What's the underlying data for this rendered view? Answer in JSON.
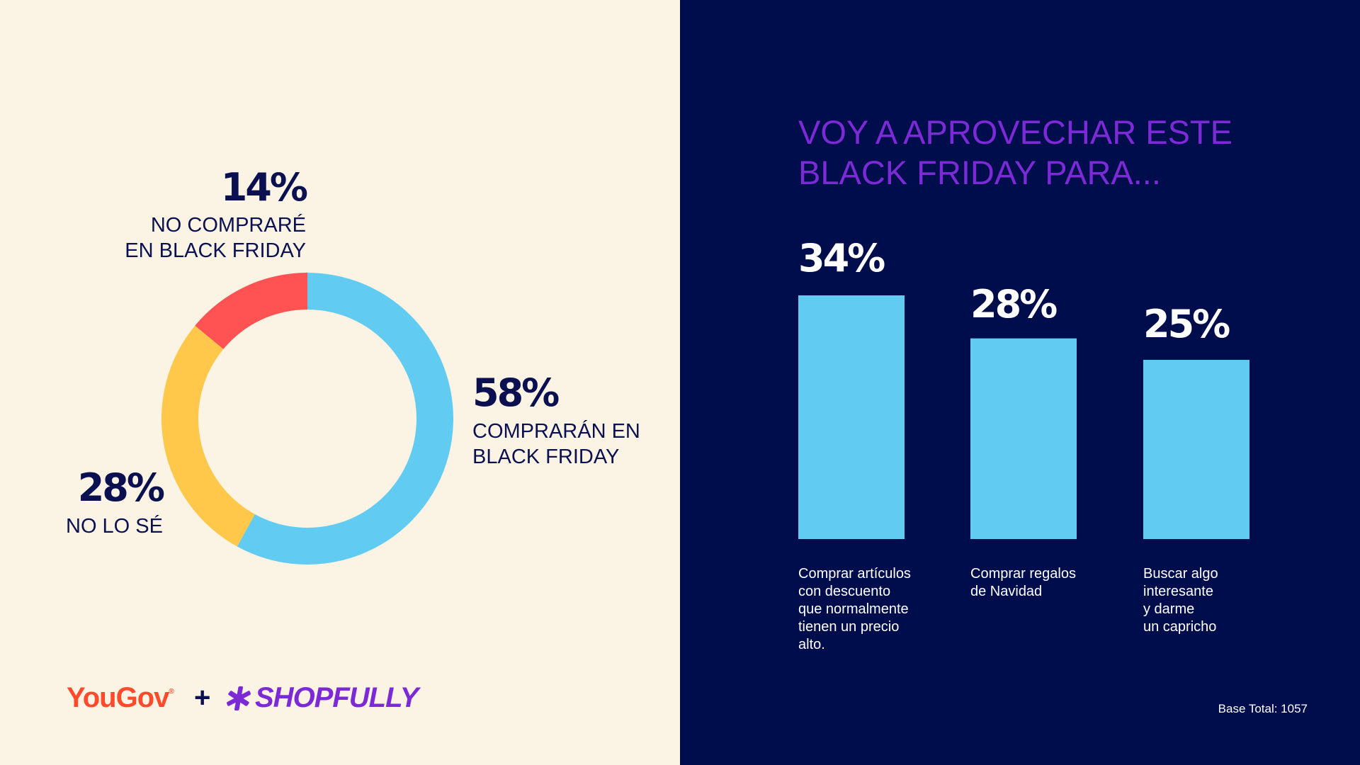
{
  "left": {
    "labels": [
      {
        "pct": "14%",
        "caption_lines": [
          "NO COMPRARÉ",
          "EN BLACK FRIDAY"
        ]
      },
      {
        "pct": "58%",
        "caption_lines": [
          "COMPRARÁN EN",
          "BLACK FRIDAY"
        ]
      },
      {
        "pct": "28%",
        "caption_lines": [
          "NO LO SÉ"
        ]
      }
    ]
  },
  "right": {
    "title_lines": [
      "VOY A APROVECHAR ESTE",
      "BLACK FRIDAY PARA..."
    ],
    "bars": [
      {
        "pct": "34%",
        "category_lines": [
          "Comprar artículos",
          "con descuento",
          "que normalmente",
          "tienen un precio",
          "alto."
        ]
      },
      {
        "pct": "28%",
        "category_lines": [
          "Comprar regalos",
          "de Navidad"
        ]
      },
      {
        "pct": "25%",
        "category_lines": [
          "Buscar algo",
          "interesante",
          "y darme",
          "un capricho"
        ]
      }
    ],
    "base_total": "Base Total: 1057"
  },
  "logos": {
    "yougov": "YouGov",
    "plus": "+",
    "shopfully": "SHOPFULLY"
  },
  "colors": {
    "left_bg": "#fbf4e4",
    "right_bg": "#000d4d",
    "blue": "#62cbf2",
    "yellow": "#ffc84a",
    "red": "#ff5252",
    "title_purple": "#7b2ad6",
    "navy_text": "#0b1150"
  },
  "chart_data": [
    {
      "type": "pie",
      "labels": [
        "COMPRARÁN EN BLACK FRIDAY",
        "NO LO SÉ",
        "NO COMPRARÉ EN BLACK FRIDAY"
      ],
      "values": [
        58,
        28,
        14
      ],
      "unit": "%",
      "colors": [
        "#62cbf2",
        "#ffc84a",
        "#ff5252"
      ]
    },
    {
      "type": "bar",
      "title": "VOY A APROVECHAR ESTE BLACK FRIDAY PARA...",
      "categories": [
        "Comprar artículos con descuento que normalmente tienen un precio alto.",
        "Comprar regalos de Navidad",
        "Buscar algo interesante y darme un capricho"
      ],
      "values": [
        34,
        28,
        25
      ],
      "unit": "%",
      "color": "#62cbf2",
      "grid": false
    }
  ]
}
